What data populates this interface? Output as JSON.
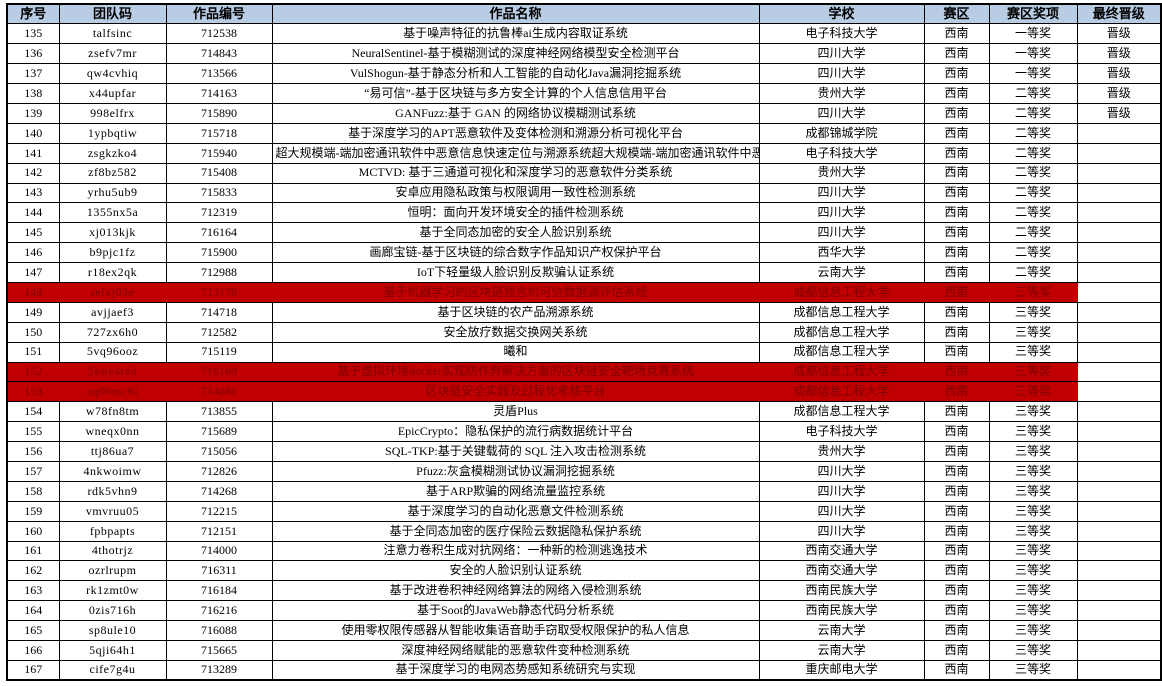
{
  "colors": {
    "header_bg": "#B8CCE4",
    "highlight_bg": "#C00000",
    "highlight_text": "#7F0000",
    "border": "#000000"
  },
  "table": {
    "columns": [
      "序号",
      "团队码",
      "作品编号",
      "作品名称",
      "学校",
      "赛区",
      "赛区奖项",
      "最终晋级"
    ],
    "rows": [
      {
        "index": "135",
        "team_code": "talfsinc",
        "work_id": "712538",
        "work_name": "基于噪声特征的抗鲁棒ai生成内容取证系统",
        "school": "电子科技大学",
        "region": "西南",
        "region_award": "一等奖",
        "final": "晋级",
        "highlight": false
      },
      {
        "index": "136",
        "team_code": "zsefv7mr",
        "work_id": "714843",
        "work_name": "NeuralSentinel-基于模糊测试的深度神经网络模型安全检测平台",
        "school": "四川大学",
        "region": "西南",
        "region_award": "一等奖",
        "final": "晋级",
        "highlight": false
      },
      {
        "index": "137",
        "team_code": "qw4cvhiq",
        "work_id": "713566",
        "work_name": "VulShogun-基于静态分析和人工智能的自动化Java漏洞挖掘系统",
        "school": "四川大学",
        "region": "西南",
        "region_award": "一等奖",
        "final": "晋级",
        "highlight": false
      },
      {
        "index": "138",
        "team_code": "x44upfar",
        "work_id": "714163",
        "work_name": "“易可信”-基于区块链与多方安全计算的个人信息信用平台",
        "school": "贵州大学",
        "region": "西南",
        "region_award": "二等奖",
        "final": "晋级",
        "highlight": false
      },
      {
        "index": "139",
        "team_code": "998elfrx",
        "work_id": "715890",
        "work_name": "GANFuzz:基于 GAN 的网络协议模糊测试系统",
        "school": "四川大学",
        "region": "西南",
        "region_award": "二等奖",
        "final": "晋级",
        "highlight": false
      },
      {
        "index": "140",
        "team_code": "1ypbqtiw",
        "work_id": "715718",
        "work_name": "基于深度学习的APT恶意软件及变体检测和溯源分析可视化平台",
        "school": "成都锦城学院",
        "region": "西南",
        "region_award": "二等奖",
        "final": "",
        "highlight": false
      },
      {
        "index": "141",
        "team_code": "zsgkzko4",
        "work_id": "715940",
        "work_name": "超大规模端-端加密通讯软件中恶意信息快速定位与溯源系统超大规模端-端加密通讯软件中恶意信息快速定位与",
        "school": "电子科技大学",
        "region": "西南",
        "region_award": "二等奖",
        "final": "",
        "highlight": false
      },
      {
        "index": "142",
        "team_code": "zf8bz582",
        "work_id": "715408",
        "work_name": "MCTVD: 基于三通道可视化和深度学习的恶意软件分类系统",
        "school": "贵州大学",
        "region": "西南",
        "region_award": "二等奖",
        "final": "",
        "highlight": false
      },
      {
        "index": "143",
        "team_code": "yrhu5ub9",
        "work_id": "715833",
        "work_name": "安卓应用隐私政策与权限调用一致性检测系统",
        "school": "四川大学",
        "region": "西南",
        "region_award": "二等奖",
        "final": "",
        "highlight": false
      },
      {
        "index": "144",
        "team_code": "1355nx5a",
        "work_id": "712319",
        "work_name": "恒明：面向开发环境安全的插件检测系统",
        "school": "四川大学",
        "region": "西南",
        "region_award": "二等奖",
        "final": "",
        "highlight": false
      },
      {
        "index": "145",
        "team_code": "xj013kjk",
        "work_id": "716164",
        "work_name": "基于全同态加密的安全人脸识别系统",
        "school": "四川大学",
        "region": "西南",
        "region_award": "二等奖",
        "final": "",
        "highlight": false
      },
      {
        "index": "146",
        "team_code": "b9pjc1fz",
        "work_id": "715900",
        "work_name": "画廊宝链-基于区块链的综合数字作品知识产权保护平台",
        "school": "西华大学",
        "region": "西南",
        "region_award": "二等奖",
        "final": "",
        "highlight": false
      },
      {
        "index": "147",
        "team_code": "r18ex2qk",
        "work_id": "712988",
        "work_name": "IoT下轻量级人脸识别反欺骗认证系统",
        "school": "云南大学",
        "region": "西南",
        "region_award": "二等奖",
        "final": "",
        "highlight": false
      },
      {
        "index": "148",
        "team_code": "relxj03e",
        "work_id": "713178",
        "work_name": "基于机器学习的区块链预言机可信数据源评估系统",
        "school": "成都信息工程大学",
        "region": "西南",
        "region_award": "三等奖",
        "final": "",
        "highlight": true
      },
      {
        "index": "149",
        "team_code": "avjjaef3",
        "work_id": "714718",
        "work_name": "基于区块链的农产品溯源系统",
        "school": "成都信息工程大学",
        "region": "西南",
        "region_award": "三等奖",
        "final": "",
        "highlight": false
      },
      {
        "index": "150",
        "team_code": "727zx6h0",
        "work_id": "712582",
        "work_name": "安全放疗数据交换网关系统",
        "school": "成都信息工程大学",
        "region": "西南",
        "region_award": "三等奖",
        "final": "",
        "highlight": false
      },
      {
        "index": "151",
        "team_code": "5vq96ooz",
        "work_id": "715119",
        "work_name": "曦和",
        "school": "成都信息工程大学",
        "region": "西南",
        "region_award": "三等奖",
        "final": "",
        "highlight": false
      },
      {
        "index": "152",
        "team_code": "5k6y4rzd",
        "work_id": "716169",
        "work_name": "基于虚拟环境docker实现防作弊解决方案的区块链安全靶场竞赛系统",
        "school": "成都信息工程大学",
        "region": "西南",
        "region_award": "三等奖",
        "final": "",
        "highlight": true
      },
      {
        "index": "153",
        "team_code": "aq0bmc6i",
        "work_id": "714880",
        "work_name": "区块链安全实践及过程化考核平台",
        "school": "成都信息工程大学",
        "region": "西南",
        "region_award": "三等奖",
        "final": "",
        "highlight": true
      },
      {
        "index": "154",
        "team_code": "w78fn8tm",
        "work_id": "713855",
        "work_name": "灵盾Plus",
        "school": "成都信息工程大学",
        "region": "西南",
        "region_award": "三等奖",
        "final": "",
        "highlight": false
      },
      {
        "index": "155",
        "team_code": "wneqx0nn",
        "work_id": "715689",
        "work_name": "EpicCrypto：隐私保护的流行病数据统计平台",
        "school": "电子科技大学",
        "region": "西南",
        "region_award": "三等奖",
        "final": "",
        "highlight": false
      },
      {
        "index": "156",
        "team_code": "ttj86ua7",
        "work_id": "715056",
        "work_name": "SQL-TKP:基于关键载荷的 SQL 注入攻击检测系统",
        "school": "贵州大学",
        "region": "西南",
        "region_award": "三等奖",
        "final": "",
        "highlight": false
      },
      {
        "index": "157",
        "team_code": "4nkwoimw",
        "work_id": "712826",
        "work_name": "Pfuzz:灰盒模糊测试协议漏洞挖掘系统",
        "school": "四川大学",
        "region": "西南",
        "region_award": "三等奖",
        "final": "",
        "highlight": false
      },
      {
        "index": "158",
        "team_code": "rdk5vhn9",
        "work_id": "714268",
        "work_name": "基于ARP欺骗的网络流量监控系统",
        "school": "四川大学",
        "region": "西南",
        "region_award": "三等奖",
        "final": "",
        "highlight": false
      },
      {
        "index": "159",
        "team_code": "vmvruu05",
        "work_id": "712215",
        "work_name": "基于深度学习的自动化恶意文件检测系统",
        "school": "四川大学",
        "region": "西南",
        "region_award": "三等奖",
        "final": "",
        "highlight": false
      },
      {
        "index": "160",
        "team_code": "fpbpapts",
        "work_id": "712151",
        "work_name": "基于全同态加密的医疗保险云数据隐私保护系统",
        "school": "四川大学",
        "region": "西南",
        "region_award": "三等奖",
        "final": "",
        "highlight": false
      },
      {
        "index": "161",
        "team_code": "4thotrjz",
        "work_id": "714000",
        "work_name": "注意力卷积生成对抗网络：一种新的检测逃逸技术",
        "school": "西南交通大学",
        "region": "西南",
        "region_award": "三等奖",
        "final": "",
        "highlight": false
      },
      {
        "index": "162",
        "team_code": "ozrlrupm",
        "work_id": "716311",
        "work_name": "安全的人脸识别认证系统",
        "school": "西南交通大学",
        "region": "西南",
        "region_award": "三等奖",
        "final": "",
        "highlight": false
      },
      {
        "index": "163",
        "team_code": "rk1zmt0w",
        "work_id": "716184",
        "work_name": "基于改进卷积神经网络算法的网络入侵检测系统",
        "school": "西南民族大学",
        "region": "西南",
        "region_award": "三等奖",
        "final": "",
        "highlight": false
      },
      {
        "index": "164",
        "team_code": "0zis716h",
        "work_id": "716216",
        "work_name": "基于Soot的JavaWeb静态代码分析系统",
        "school": "西南民族大学",
        "region": "西南",
        "region_award": "三等奖",
        "final": "",
        "highlight": false
      },
      {
        "index": "165",
        "team_code": "sp8ule10",
        "work_id": "716088",
        "work_name": "使用零权限传感器从智能收集语音助手窃取受权限保护的私人信息",
        "school": "云南大学",
        "region": "西南",
        "region_award": "三等奖",
        "final": "",
        "highlight": false
      },
      {
        "index": "166",
        "team_code": "5qji64h1",
        "work_id": "715665",
        "work_name": "深度神经网络赋能的恶意软件变种检测系统",
        "school": "云南大学",
        "region": "西南",
        "region_award": "三等奖",
        "final": "",
        "highlight": false
      },
      {
        "index": "167",
        "team_code": "cife7g4u",
        "work_id": "713289",
        "work_name": "基于深度学习的电网态势感知系统研究与实现",
        "school": "重庆邮电大学",
        "region": "西南",
        "region_award": "三等奖",
        "final": "",
        "highlight": false
      }
    ]
  }
}
